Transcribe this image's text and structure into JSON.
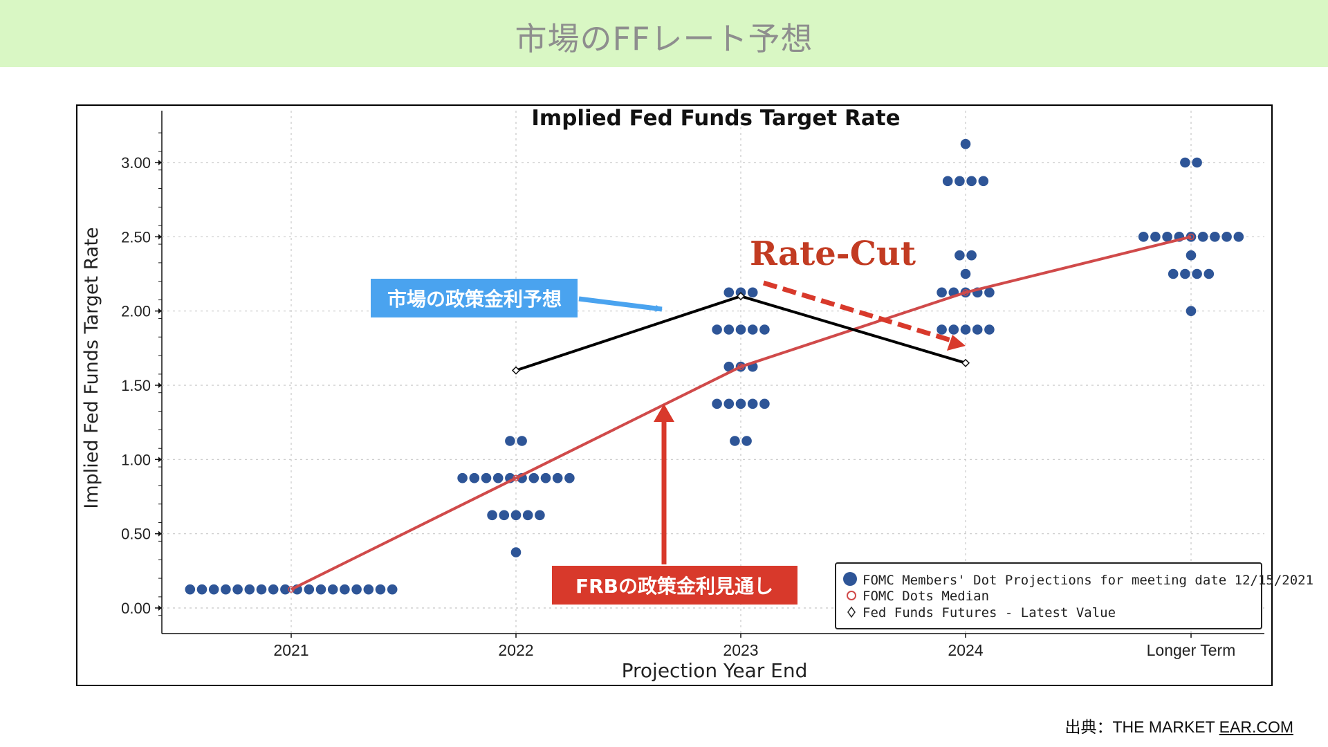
{
  "header": {
    "title": "市場のFFレート予想"
  },
  "source": {
    "prefix": "出典：THE MARKET ",
    "link": "EAR.COM"
  },
  "annotations": {
    "market_label": "市場の政策金利予想",
    "frb_label": "FRBの政策金利見通し",
    "rate_cut": "Rate-Cut"
  },
  "colors": {
    "header_bg": "#d9f7c4",
    "dots": "#2e5597",
    "median_line": "#d04a4a",
    "futures_line": "#000000",
    "market_box": "#4aa3ef",
    "frb_box": "#d8392b",
    "rate_cut_text": "#c23b22"
  },
  "chart_data": {
    "type": "scatter",
    "title": "Implied Fed Funds Target Rate",
    "xlabel": "Projection Year End",
    "ylabel": "Implied Fed Funds Target Rate",
    "categories": [
      "2021",
      "2022",
      "2023",
      "2024",
      "Longer Term"
    ],
    "yticks": [
      "0.00",
      "0.50",
      "1.00",
      "1.50",
      "2.00",
      "2.50",
      "3.00"
    ],
    "ylim": [
      -0.1,
      3.25
    ],
    "grid": true,
    "legend_position": "bottom-right",
    "legend": [
      "FOMC Members' Dot Projections for meeting date 12/15/2021",
      "FOMC Dots Median",
      "Fed Funds Futures - Latest Value"
    ],
    "dot_projections": [
      {
        "category": "2021",
        "levels": [
          {
            "value": 0.125,
            "count": 18
          }
        ]
      },
      {
        "category": "2022",
        "levels": [
          {
            "value": 1.125,
            "count": 2
          },
          {
            "value": 0.875,
            "count": 10
          },
          {
            "value": 0.625,
            "count": 5
          },
          {
            "value": 0.375,
            "count": 1
          }
        ]
      },
      {
        "category": "2023",
        "levels": [
          {
            "value": 2.125,
            "count": 3
          },
          {
            "value": 1.875,
            "count": 5
          },
          {
            "value": 1.625,
            "count": 3
          },
          {
            "value": 1.375,
            "count": 5
          },
          {
            "value": 1.125,
            "count": 2
          }
        ]
      },
      {
        "category": "2024",
        "levels": [
          {
            "value": 3.125,
            "count": 1
          },
          {
            "value": 2.875,
            "count": 4
          },
          {
            "value": 2.375,
            "count": 2
          },
          {
            "value": 2.25,
            "count": 1
          },
          {
            "value": 2.125,
            "count": 5
          },
          {
            "value": 1.875,
            "count": 5
          }
        ]
      },
      {
        "category": "Longer Term",
        "levels": [
          {
            "value": 3.0,
            "count": 2
          },
          {
            "value": 2.5,
            "count": 9
          },
          {
            "value": 2.375,
            "count": 1
          },
          {
            "value": 2.25,
            "count": 4
          },
          {
            "value": 2.0,
            "count": 1
          }
        ]
      }
    ],
    "series": [
      {
        "name": "FOMC Dots Median",
        "categories": [
          "2021",
          "2022",
          "2023",
          "2024",
          "Longer Term"
        ],
        "values": [
          0.125,
          0.875,
          1.625,
          2.125,
          2.5
        ]
      },
      {
        "name": "Fed Funds Futures - Latest Value",
        "categories": [
          "2022",
          "2023",
          "2024"
        ],
        "values": [
          1.6,
          2.1,
          1.65
        ]
      }
    ]
  }
}
